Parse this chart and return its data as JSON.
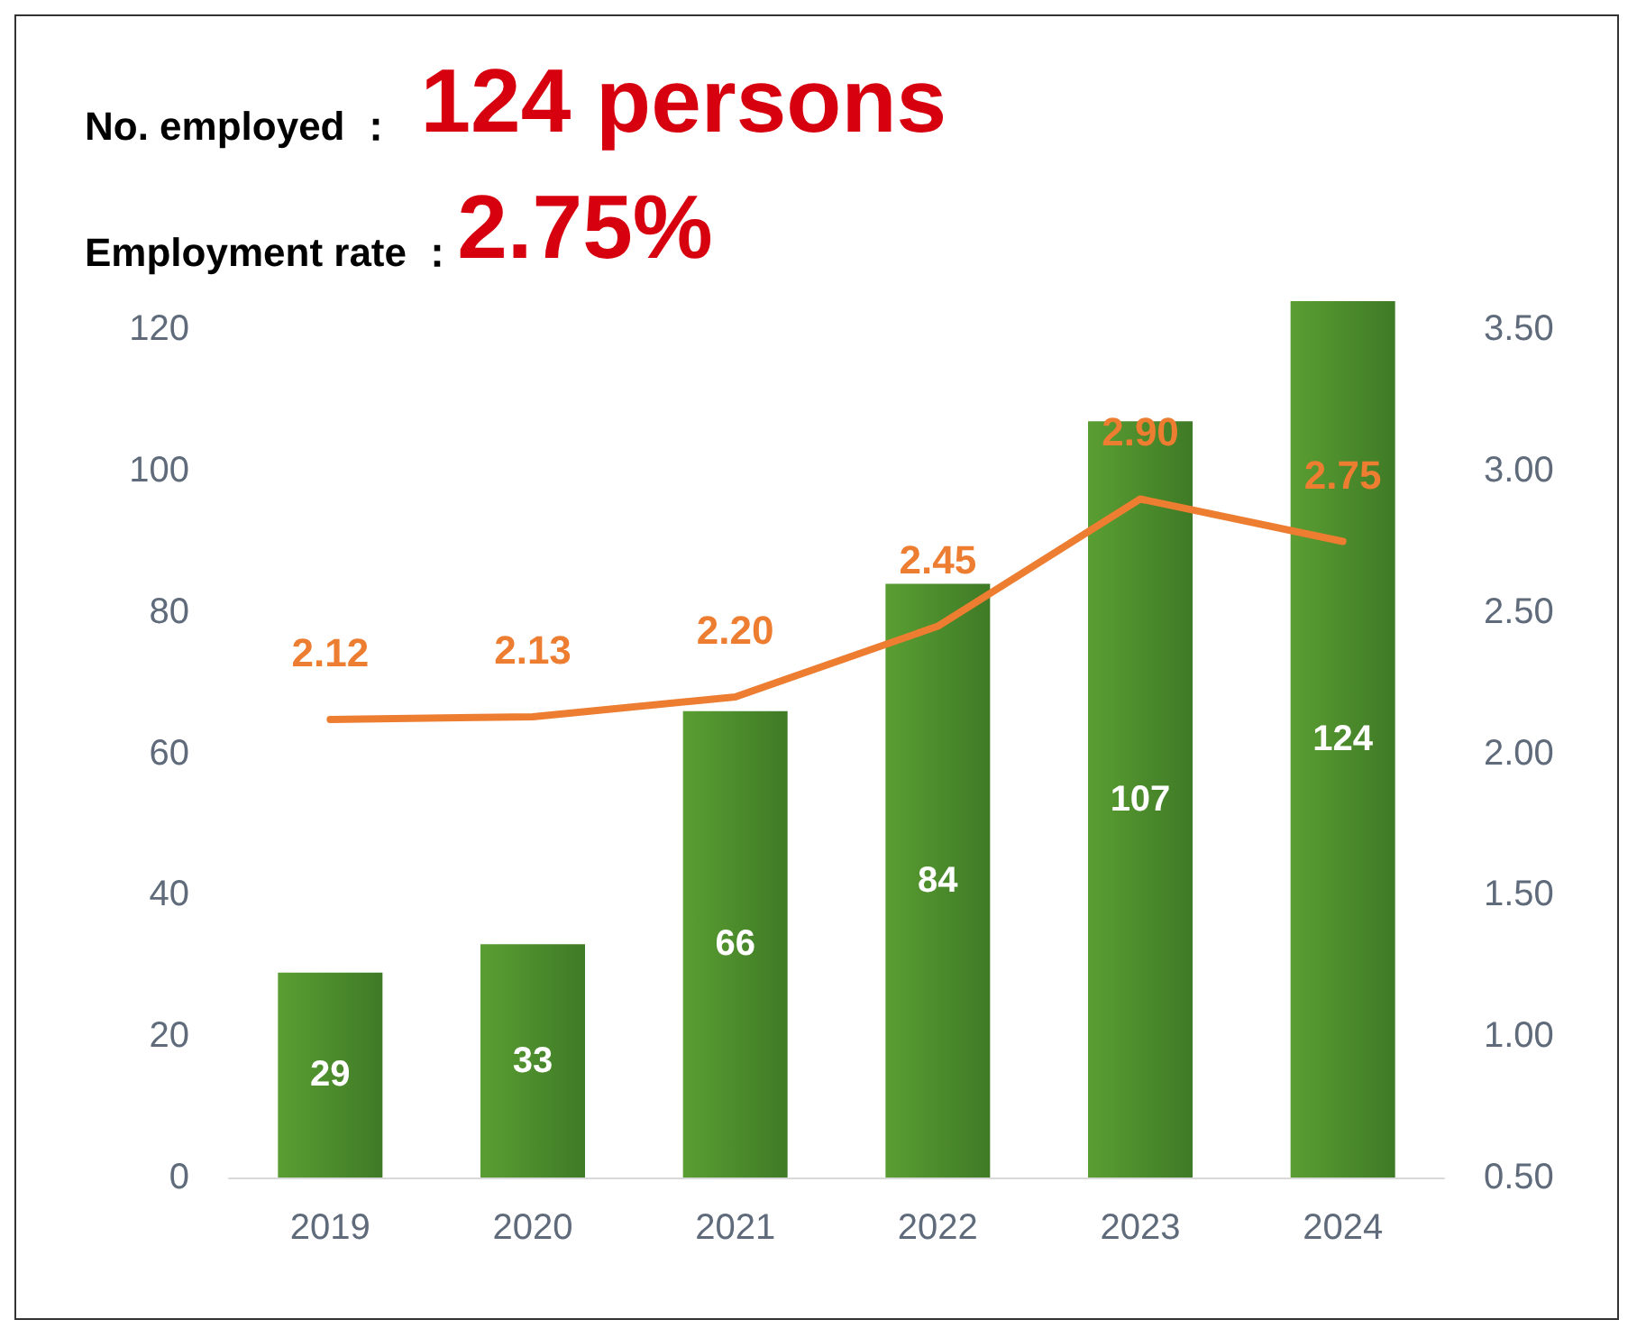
{
  "chart_data": {
    "type": "bar",
    "title": "No. employed ： 124 persons",
    "subtitle": "Employment rate ：2.75%",
    "categories": [
      "2019",
      "2020",
      "2021",
      "2022",
      "2023",
      "2024"
    ],
    "series": [
      {
        "color": "#5a9e32",
        "values": [
          29,
          33,
          66,
          84,
          107,
          124
        ],
        "value_labels": [
          "29",
          "33",
          "66",
          "84",
          "107",
          "124"
        ]
      },
      {
        "type": "line",
        "axis": "y2",
        "color": "#ed7d31",
        "marker": "none",
        "line_style": "solid",
        "values": [
          2.12,
          2.13,
          2.2,
          2.45,
          2.9,
          2.75
        ],
        "value_labels": [
          "2.12",
          "2.13",
          "2.20",
          "2.45",
          "2.90",
          "2.75"
        ]
      }
    ],
    "ylim": [
      0,
      124
    ],
    "yticks": [
      0,
      20,
      40,
      60,
      80,
      100,
      120
    ],
    "y2lim": [
      0.5,
      3.6
    ],
    "y2ticks": [
      {
        "value": 0.5,
        "label": "0.50"
      },
      {
        "value": 1,
        "label": "1.00"
      },
      {
        "value": 1.5,
        "label": "1.50"
      },
      {
        "value": 2,
        "label": "2.00"
      },
      {
        "value": 2.5,
        "label": "2.50"
      },
      {
        "value": 3,
        "label": "3.00"
      },
      {
        "value": 3.5,
        "label": "3.50"
      }
    ],
    "grid": false
  }
}
